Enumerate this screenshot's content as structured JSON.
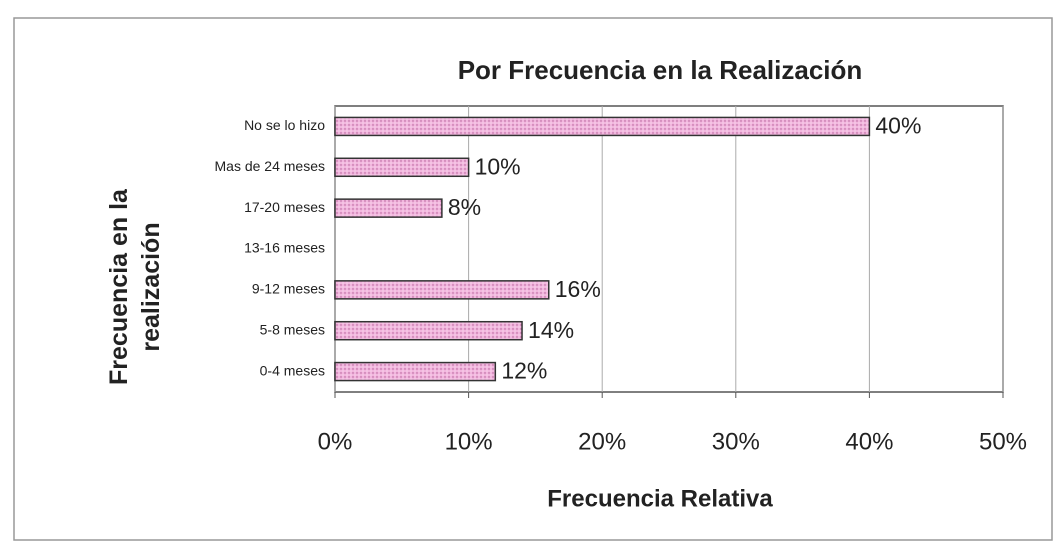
{
  "chart_data": {
    "type": "bar",
    "orientation": "horizontal",
    "title": "Por Frecuencia en la Realización",
    "x_label": "Frecuencia Relativa",
    "y_label": "Frecuencia en la realización",
    "categories": [
      "No se lo hizo",
      "Mas de 24 meses",
      "17-20 meses",
      "13-16 meses",
      "9-12 meses",
      "5-8 meses",
      "0-4 meses"
    ],
    "values": [
      40,
      10,
      8,
      null,
      16,
      14,
      12
    ],
    "value_labels": [
      "40%",
      "10%",
      "8%",
      null,
      "16%",
      "14%",
      "12%"
    ],
    "color": "#f2b6de",
    "xlim": [
      0,
      50
    ],
    "xticks": [
      {
        "value": 0,
        "label": "0%"
      },
      {
        "value": 10,
        "label": "10%"
      },
      {
        "value": 20,
        "label": "20%"
      },
      {
        "value": 30,
        "label": "30%"
      },
      {
        "value": 40,
        "label": "40%"
      },
      {
        "value": 50,
        "label": "50%"
      }
    ],
    "grid": true
  }
}
